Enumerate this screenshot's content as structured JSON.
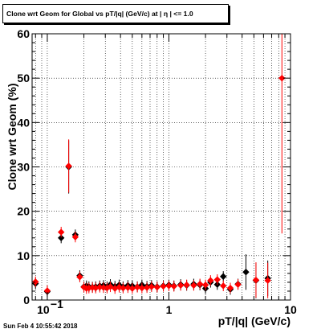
{
  "title": "Clone wrt Geom for Global vs pT/|q| (GeV/c) at |  η | <= 1.0",
  "timestamp": "Sun Feb  4 10:55:42 2018",
  "colors": {
    "series_black": "#000000",
    "series_red": "#ff0000",
    "grid": "#000000"
  },
  "chart_data": {
    "type": "scatter",
    "title": "Clone wrt Geom for Global vs pT/|q| (GeV/c) at |  η | <= 1.0",
    "xlabel": "pT/|q| (GeV/c)",
    "ylabel": "Clone wrt Geom (%)",
    "xscale": "log",
    "xlim": [
      0.075,
      10
    ],
    "ylim": [
      0,
      60
    ],
    "grid": true,
    "x_ticks": [
      {
        "value": 0.1,
        "base": "10",
        "exp": "−1"
      },
      {
        "value": 1,
        "label": "1"
      },
      {
        "value": 10,
        "label": "10"
      }
    ],
    "y_ticks": [
      0,
      10,
      20,
      30,
      40,
      50,
      60
    ],
    "series": [
      {
        "color": "#000000",
        "points": [
          {
            "x": 0.08,
            "y": 3.7
          },
          {
            "x": 0.1,
            "y": 1.9
          },
          {
            "x": 0.13,
            "y": 14.0
          },
          {
            "x": 0.15,
            "y": 30.0
          },
          {
            "x": 0.17,
            "y": 14.7
          },
          {
            "x": 0.185,
            "y": 5.5
          },
          {
            "x": 0.2,
            "y": 3.0
          },
          {
            "x": 0.21,
            "y": 3.2
          },
          {
            "x": 0.22,
            "y": 3.0
          },
          {
            "x": 0.235,
            "y": 2.9
          },
          {
            "x": 0.25,
            "y": 3.0
          },
          {
            "x": 0.27,
            "y": 3.2
          },
          {
            "x": 0.29,
            "y": 3.3
          },
          {
            "x": 0.31,
            "y": 3.0
          },
          {
            "x": 0.33,
            "y": 3.5
          },
          {
            "x": 0.36,
            "y": 3.1
          },
          {
            "x": 0.39,
            "y": 3.4
          },
          {
            "x": 0.42,
            "y": 3.0
          },
          {
            "x": 0.46,
            "y": 3.3
          },
          {
            "x": 0.5,
            "y": 3.2
          },
          {
            "x": 0.55,
            "y": 3.0
          },
          {
            "x": 0.6,
            "y": 3.4
          },
          {
            "x": 0.66,
            "y": 3.1
          },
          {
            "x": 0.72,
            "y": 3.3
          },
          {
            "x": 0.8,
            "y": 3.0
          },
          {
            "x": 0.9,
            "y": 3.2
          },
          {
            "x": 1.0,
            "y": 3.4
          },
          {
            "x": 1.1,
            "y": 3.2
          },
          {
            "x": 1.25,
            "y": 3.5
          },
          {
            "x": 1.4,
            "y": 3.3
          },
          {
            "x": 1.6,
            "y": 3.6
          },
          {
            "x": 1.8,
            "y": 3.4
          },
          {
            "x": 2.0,
            "y": 2.6
          },
          {
            "x": 2.2,
            "y": 4.0
          },
          {
            "x": 2.5,
            "y": 3.5
          },
          {
            "x": 2.8,
            "y": 5.3
          },
          {
            "x": 3.2,
            "y": 2.4
          },
          {
            "x": 3.7,
            "y": 3.6
          },
          {
            "x": 4.3,
            "y": 6.3
          },
          {
            "x": 5.2,
            "y": 4.4
          },
          {
            "x": 6.5,
            "y": 4.9
          }
        ]
      },
      {
        "color": "#ff0000",
        "points": [
          {
            "x": 0.08,
            "y": 4.1
          },
          {
            "x": 0.1,
            "y": 2.1
          },
          {
            "x": 0.13,
            "y": 15.3
          },
          {
            "x": 0.15,
            "y": 30.2
          },
          {
            "x": 0.17,
            "y": 14.2
          },
          {
            "x": 0.185,
            "y": 5.2
          },
          {
            "x": 0.2,
            "y": 2.9
          },
          {
            "x": 0.21,
            "y": 2.6
          },
          {
            "x": 0.22,
            "y": 2.7
          },
          {
            "x": 0.235,
            "y": 2.8
          },
          {
            "x": 0.25,
            "y": 2.7
          },
          {
            "x": 0.27,
            "y": 2.9
          },
          {
            "x": 0.29,
            "y": 2.8
          },
          {
            "x": 0.31,
            "y": 2.7
          },
          {
            "x": 0.33,
            "y": 3.0
          },
          {
            "x": 0.36,
            "y": 2.6
          },
          {
            "x": 0.39,
            "y": 2.9
          },
          {
            "x": 0.42,
            "y": 2.7
          },
          {
            "x": 0.46,
            "y": 2.8
          },
          {
            "x": 0.5,
            "y": 2.6
          },
          {
            "x": 0.55,
            "y": 2.9
          },
          {
            "x": 0.6,
            "y": 2.7
          },
          {
            "x": 0.66,
            "y": 2.8
          },
          {
            "x": 0.72,
            "y": 3.0
          },
          {
            "x": 0.8,
            "y": 2.9
          },
          {
            "x": 0.9,
            "y": 3.1
          },
          {
            "x": 1.0,
            "y": 3.2
          },
          {
            "x": 1.1,
            "y": 3.1
          },
          {
            "x": 1.25,
            "y": 3.3
          },
          {
            "x": 1.4,
            "y": 3.4
          },
          {
            "x": 1.6,
            "y": 3.3
          },
          {
            "x": 1.8,
            "y": 3.6
          },
          {
            "x": 2.0,
            "y": 3.4
          },
          {
            "x": 2.2,
            "y": 4.4
          },
          {
            "x": 2.5,
            "y": 4.6
          },
          {
            "x": 2.8,
            "y": 3.2
          },
          {
            "x": 3.2,
            "y": 2.7
          },
          {
            "x": 3.7,
            "y": 3.5
          },
          {
            "x": 5.2,
            "y": 4.5
          },
          {
            "x": 6.5,
            "y": 4.4
          },
          {
            "x": 8.5,
            "y": 50.0
          }
        ]
      }
    ]
  }
}
